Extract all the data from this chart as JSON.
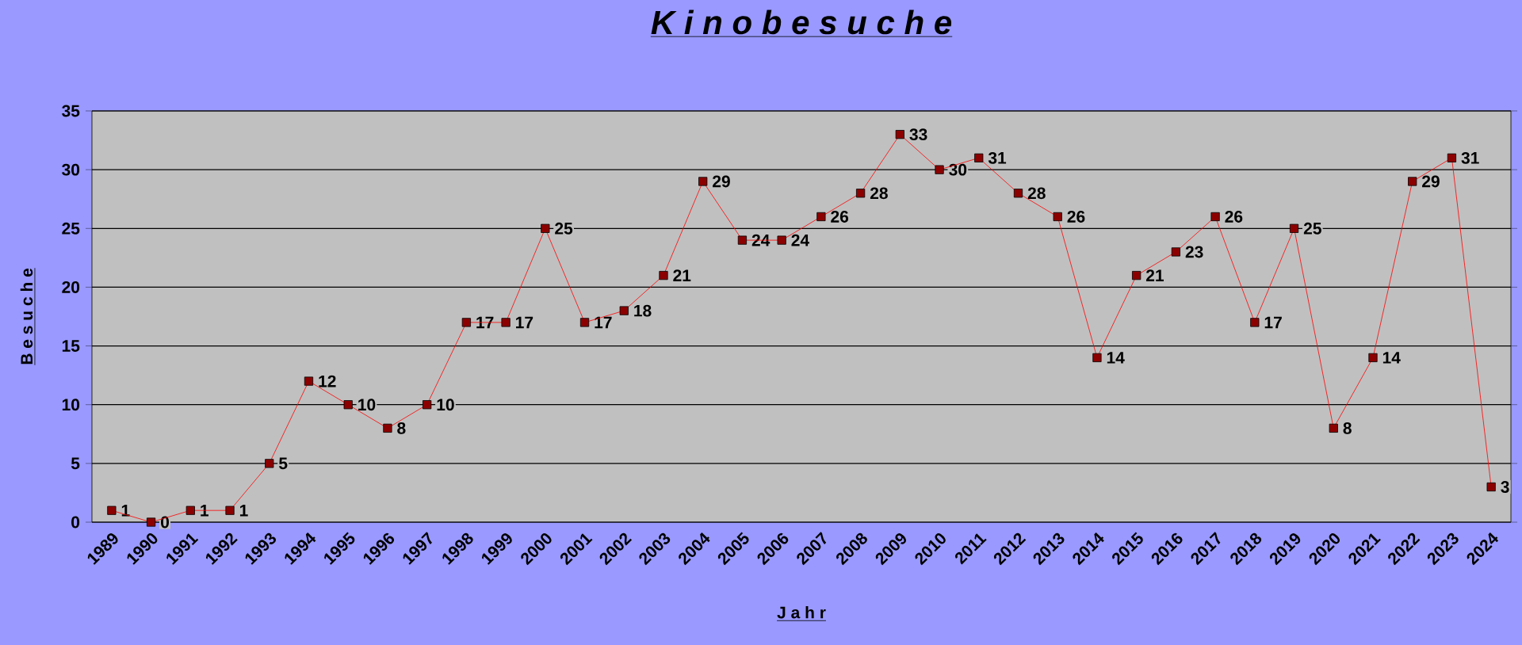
{
  "chart_data": {
    "type": "line",
    "title": "K i n o b e s u c h e",
    "xlabel": "J a h r",
    "ylabel": "B e s u c h e",
    "categories": [
      "1989",
      "1990",
      "1991",
      "1992",
      "1993",
      "1994",
      "1995",
      "1996",
      "1997",
      "1998",
      "1999",
      "2000",
      "2001",
      "2002",
      "2003",
      "2004",
      "2005",
      "2006",
      "2007",
      "2008",
      "2009",
      "2010",
      "2011",
      "2012",
      "2013",
      "2014",
      "2015",
      "2016",
      "2017",
      "2018",
      "2019",
      "2020",
      "2021",
      "2022",
      "2023",
      "2024"
    ],
    "values": [
      1,
      0,
      1,
      1,
      5,
      12,
      10,
      8,
      10,
      17,
      17,
      25,
      17,
      18,
      21,
      29,
      24,
      24,
      26,
      28,
      33,
      30,
      31,
      28,
      26,
      14,
      21,
      23,
      26,
      17,
      25,
      8,
      14,
      29,
      31,
      3
    ],
    "color": "#ff0000",
    "ylim": [
      0,
      35
    ],
    "yticks": [
      0,
      5,
      10,
      15,
      20,
      25,
      30,
      35
    ],
    "grid": "y",
    "marker": "square",
    "line_style": "solid",
    "data_labels": true
  }
}
